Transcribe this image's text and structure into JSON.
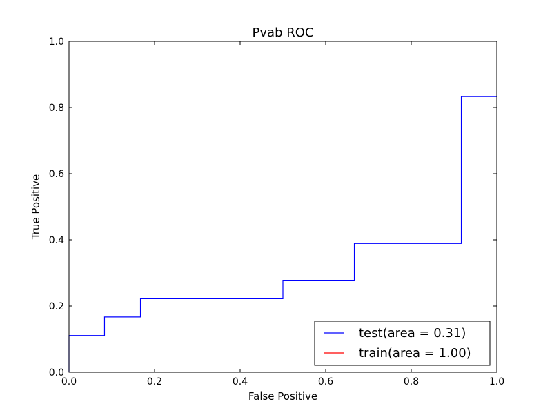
{
  "chart_data": {
    "type": "line",
    "title": "Pvab ROC",
    "xlabel": "False Positive",
    "ylabel": "True Positive",
    "xlim": [
      0.0,
      1.0
    ],
    "ylim": [
      0.0,
      1.0
    ],
    "x_ticks": [
      "0.0",
      "0.2",
      "0.4",
      "0.6",
      "0.8",
      "1.0"
    ],
    "y_ticks": [
      "0.0",
      "0.2",
      "0.4",
      "0.6",
      "0.8",
      "1.0"
    ],
    "grid": false,
    "legend_position": "lower-right",
    "series": [
      {
        "name": "test(area = 0.31)",
        "color": "#0000ff",
        "step": true,
        "x": [
          0.0,
          0.0,
          0.083,
          0.083,
          0.167,
          0.167,
          0.5,
          0.5,
          0.667,
          0.667,
          0.917,
          0.917,
          1.0
        ],
        "y": [
          0.0,
          0.111,
          0.111,
          0.167,
          0.167,
          0.222,
          0.222,
          0.278,
          0.278,
          0.389,
          0.389,
          0.833,
          0.833
        ]
      },
      {
        "name": "train(area = 1.00)",
        "color": "#ff0000",
        "step": true,
        "x": [],
        "y": []
      }
    ]
  }
}
